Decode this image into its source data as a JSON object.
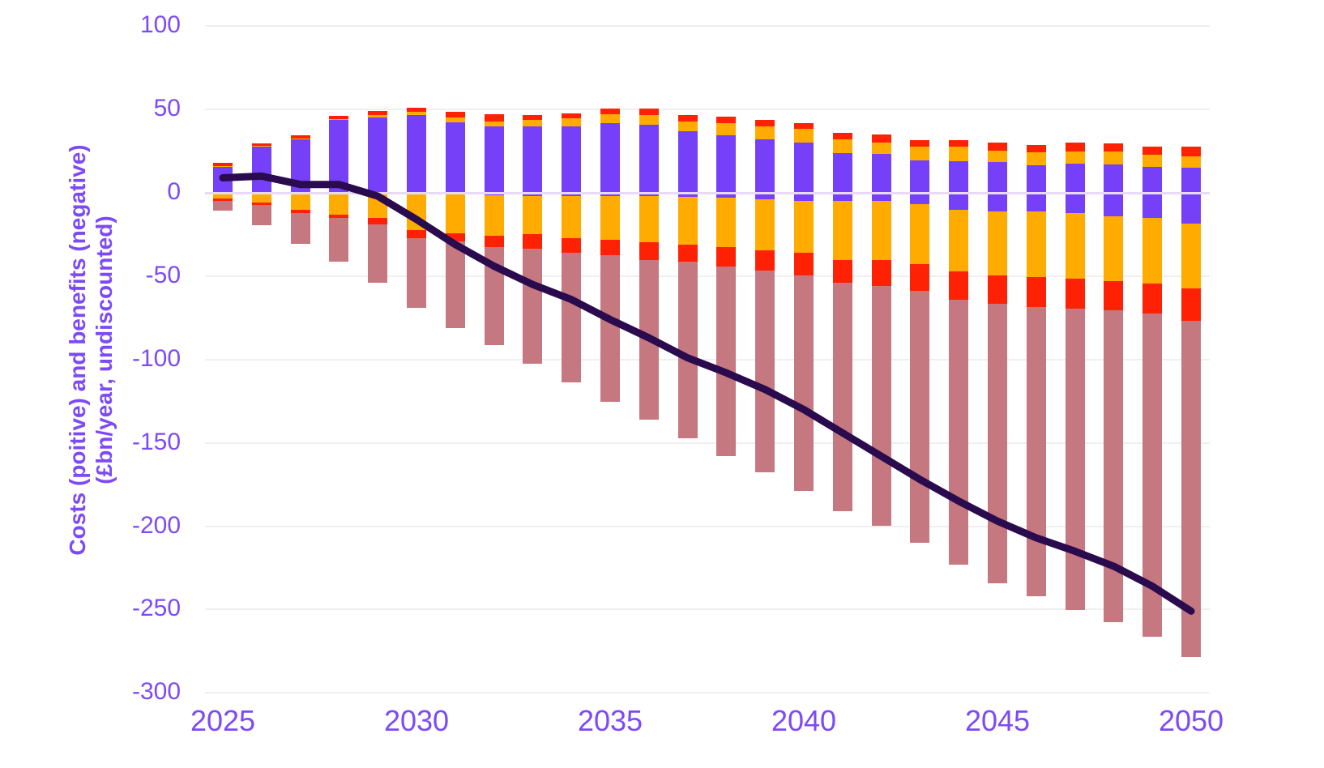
{
  "y_axis": {
    "title_line1": "Costs (poitive) and benefits (negative)",
    "title_line2": "(£bn/year, undiscounted)",
    "ticks": [
      100,
      50,
      0,
      -50,
      -100,
      -150,
      -200,
      -250,
      -300
    ]
  },
  "x_axis": {
    "tick_labels": [
      "2025",
      "2030",
      "2035",
      "2040",
      "2045",
      "2050"
    ]
  },
  "colors": {
    "purple_bar": "#7540f7",
    "orange_bar": "#ffab00",
    "red_bar": "#ff2104",
    "mauve_bar": "#c67880",
    "net_line": "#2a0b4d",
    "axis_text": "#7c4af8",
    "zero_line": "#e9d9f8",
    "gridline": "#efefef"
  },
  "chart_data": {
    "type": "bar",
    "subtype": "stacked-bar-with-line",
    "title": "",
    "xlabel": "",
    "ylabel": "Costs (poitive) and benefits (negative) (£bn/year, undiscounted)",
    "ylim": [
      -300,
      100
    ],
    "grid": true,
    "legend_position": "none",
    "categories": [
      2025,
      2026,
      2027,
      2028,
      2029,
      2030,
      2031,
      2032,
      2033,
      2034,
      2035,
      2036,
      2037,
      2038,
      2039,
      2040,
      2041,
      2042,
      2043,
      2044,
      2045,
      2046,
      2047,
      2048,
      2049,
      2050
    ],
    "series": [
      {
        "name": "purple-positive",
        "color": "#7540f7",
        "values": [
          15.5,
          27.5,
          32,
          43.5,
          45,
          46.5,
          42.5,
          40,
          40,
          40,
          42,
          41,
          37,
          34.5,
          32,
          30,
          24,
          23.5,
          19.5,
          19,
          18.5,
          16.5,
          17.5,
          17,
          15.5,
          15
        ]
      },
      {
        "name": "orange-positive",
        "color": "#ffab00",
        "values": [
          0.5,
          0.5,
          0.5,
          0.5,
          1.8,
          2,
          2.5,
          2.7,
          3.7,
          4.5,
          5,
          5.5,
          6,
          7.5,
          8,
          8.5,
          8,
          6.5,
          8,
          8.5,
          7,
          8,
          7.5,
          8,
          7.5,
          7
        ]
      },
      {
        "name": "red-positive",
        "color": "#ff2104",
        "values": [
          2,
          1.5,
          2,
          2,
          2.2,
          2.5,
          3.5,
          4.3,
          2.8,
          3,
          3.5,
          4,
          3.5,
          3.5,
          3.5,
          3.5,
          4,
          5,
          4,
          4,
          4.5,
          4,
          5,
          4.5,
          4.5,
          5.5
        ]
      },
      {
        "name": "purple-negative",
        "color": "#7540f7",
        "values": [
          0,
          0,
          0,
          0,
          -0.5,
          -0.5,
          -1,
          -1.5,
          -2,
          -2,
          -2,
          -2,
          -2.5,
          -3,
          -4,
          -5,
          -5,
          -5,
          -7,
          -10,
          -11,
          -11,
          -12,
          -14,
          -15,
          -18.5
        ]
      },
      {
        "name": "orange-negative",
        "color": "#ffab00",
        "values": [
          -3.5,
          -6,
          -10,
          -13,
          -14.5,
          -22,
          -23.5,
          -24.5,
          -23,
          -25,
          -26,
          -27.5,
          -28.5,
          -29.5,
          -30.5,
          -31,
          -35.5,
          -35.5,
          -36,
          -37,
          -38.5,
          -39.5,
          -39.5,
          -39,
          -39.5,
          -39
        ]
      },
      {
        "name": "red-negative",
        "color": "#ff2104",
        "values": [
          -1.5,
          -1.5,
          -2,
          -2,
          -4,
          -4.5,
          -4.5,
          -6.5,
          -8.5,
          -9,
          -9.5,
          -11,
          -10.5,
          -11.5,
          -12,
          -13.5,
          -13.5,
          -15.5,
          -16,
          -17,
          -17,
          -18,
          -18,
          -17.5,
          -18,
          -19.5
        ]
      },
      {
        "name": "mauve-negative",
        "color": "#c67880",
        "values": [
          -5.5,
          -12,
          -18.5,
          -26.5,
          -35,
          -42,
          -52,
          -59,
          -69,
          -77.5,
          -88,
          -95.5,
          -106,
          -114,
          -121,
          -129.5,
          -137,
          -144,
          -151,
          -159,
          -168,
          -173.5,
          -181,
          -187,
          -194,
          -201.5
        ]
      }
    ],
    "line_series": {
      "name": "net-total-line",
      "color": "#2a0b4d",
      "values": [
        9,
        10,
        5,
        5,
        -2,
        -16,
        -31,
        -44,
        -55,
        -64,
        -76,
        -87,
        -99,
        -108,
        -118,
        -130,
        -144,
        -158,
        -172,
        -185,
        -197,
        -207,
        -215,
        -224,
        -236,
        -251
      ]
    }
  }
}
